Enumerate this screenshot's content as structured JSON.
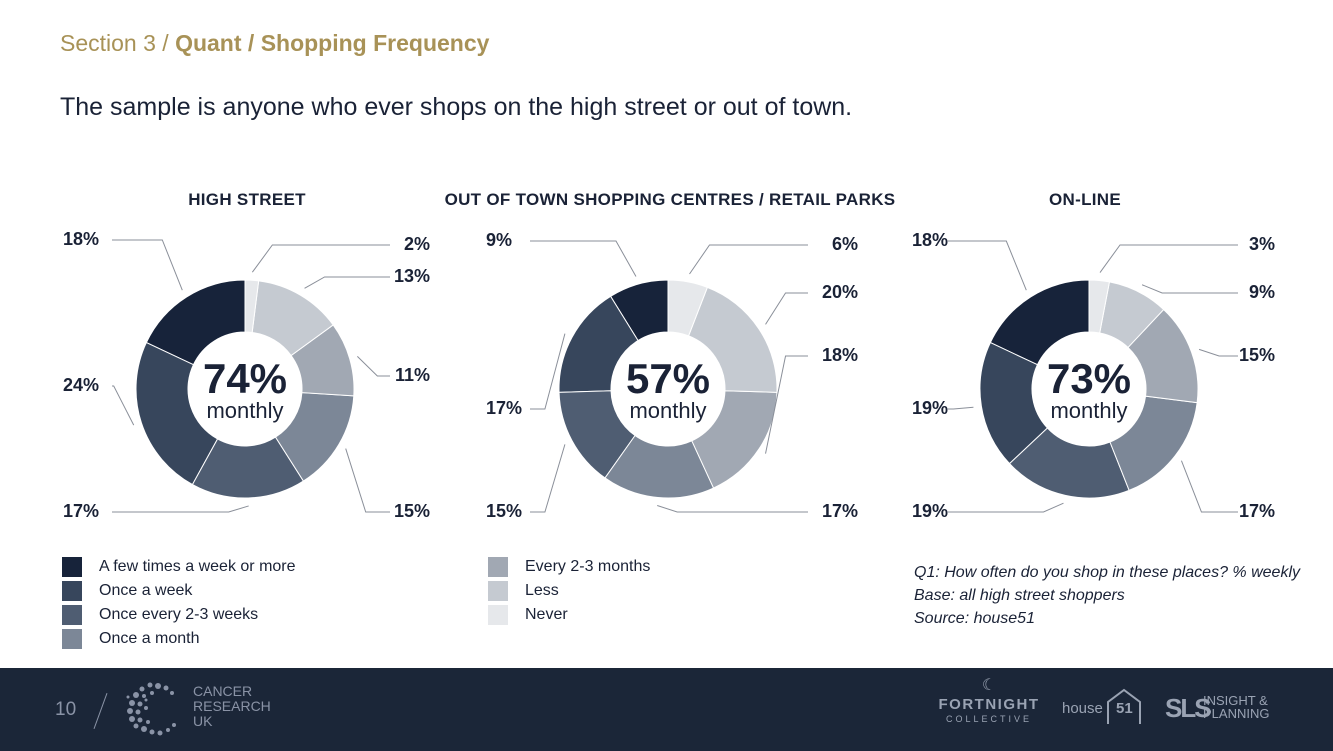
{
  "header": {
    "section_prefix": "Section 3 / ",
    "section_bold": "Quant / Shopping Frequency",
    "subtitle": "The sample is anyone who ever shops on the high street or out of town."
  },
  "chart_data": [
    {
      "type": "pie",
      "title": "HIGH STREET",
      "center_value": "74%",
      "center_label": "monthly",
      "categories": [
        "A few times a week or more",
        "Once a week",
        "Once every 2-3 weeks",
        "Once a month",
        "Every 2-3 months",
        "Less",
        "Never"
      ],
      "values": [
        18,
        24,
        17,
        15,
        11,
        13,
        2
      ],
      "value_labels": [
        "18%",
        "24%",
        "17%",
        "15%",
        "11%",
        "13%",
        "2%"
      ]
    },
    {
      "type": "pie",
      "title": "OUT OF TOWN SHOPPING CENTRES / RETAIL PARKS",
      "center_value": "57%",
      "center_label": "monthly",
      "categories": [
        "A few times a week or more",
        "Once a week",
        "Once every 2-3 weeks",
        "Once a month",
        "Every 2-3 months",
        "Less",
        "Never"
      ],
      "values": [
        9,
        17,
        15,
        17,
        18,
        20,
        6
      ],
      "value_labels": [
        "9%",
        "17%",
        "15%",
        "17%",
        "18%",
        "20%",
        "6%"
      ]
    },
    {
      "type": "pie",
      "title": "ON-LINE",
      "center_value": "73%",
      "center_label": "monthly",
      "categories": [
        "A few times a week or more",
        "Once a week",
        "Once every 2-3 weeks",
        "Once a month",
        "Every 2-3 months",
        "Less",
        "Never"
      ],
      "values": [
        18,
        19,
        19,
        17,
        15,
        9,
        3
      ],
      "value_labels": [
        "18%",
        "19%",
        "19%",
        "17%",
        "15%",
        "9%",
        "3%"
      ]
    }
  ],
  "legend": {
    "colors": [
      "#17233a",
      "#37465c",
      "#4f5d72",
      "#7c8797",
      "#a1a8b3",
      "#c5cad1",
      "#e6e8eb"
    ],
    "items": [
      "A few times a week or more",
      "Once a week",
      "Once every 2-3 weeks",
      "Once a month",
      "Every 2-3 months",
      "Less",
      "Never"
    ]
  },
  "notes": {
    "q1": "Q1: How often do you shop in these places?  % weekly",
    "base": "Base: all high street shoppers",
    "source": "Source: house51"
  },
  "footer": {
    "page_number": "10",
    "cruk_line1": "CANCER",
    "cruk_line2": "RESEARCH",
    "cruk_line3": "UK",
    "fortnight_name": "FORTNIGHT",
    "fortnight_sub": "COLLECTIVE",
    "house_text": "house",
    "house_num": "51",
    "sls_mark": "SLS",
    "sls_line1": "INSIGHT &",
    "sls_line2": "PLANNING"
  }
}
